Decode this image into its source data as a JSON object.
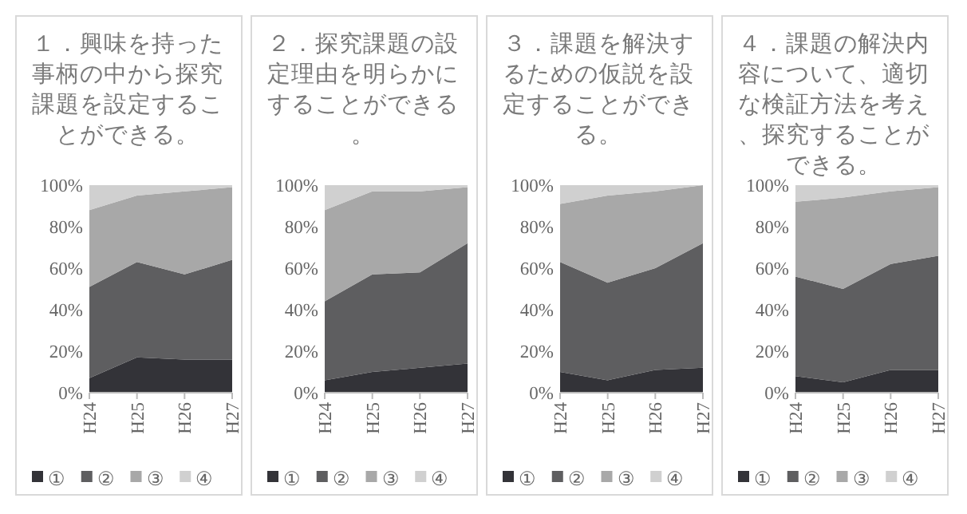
{
  "chart_data": [
    {
      "type": "area",
      "stacked": true,
      "title": "１．興味を持った事柄の中から探究課題を設定することができる。",
      "categories": [
        "H24",
        "H25",
        "H26",
        "H27"
      ],
      "ylim": [
        0,
        100
      ],
      "yticks": [
        {
          "value": 0,
          "label": "0%"
        },
        {
          "value": 20,
          "label": "20%"
        },
        {
          "value": 40,
          "label": "40%"
        },
        {
          "value": 60,
          "label": "60%"
        },
        {
          "value": 80,
          "label": "80%"
        },
        {
          "value": 100,
          "label": "100%"
        }
      ],
      "legend": "bottom",
      "series": [
        {
          "name": "①",
          "color": "#333338",
          "values": [
            7,
            17,
            16,
            16
          ]
        },
        {
          "name": "②",
          "color": "#5e5e60",
          "values": [
            44,
            46,
            41,
            48
          ]
        },
        {
          "name": "③",
          "color": "#a8a8a8",
          "values": [
            37,
            32,
            40,
            35
          ]
        },
        {
          "name": "④",
          "color": "#d0d0d0",
          "values": [
            12,
            5,
            3,
            1
          ]
        }
      ]
    },
    {
      "type": "area",
      "stacked": true,
      "title": "２．探究課題の設定理由を明らかにすることができる。",
      "categories": [
        "H24",
        "H25",
        "H26",
        "H27"
      ],
      "ylim": [
        0,
        100
      ],
      "yticks": [
        {
          "value": 0,
          "label": "0%"
        },
        {
          "value": 20,
          "label": "20%"
        },
        {
          "value": 40,
          "label": "40%"
        },
        {
          "value": 60,
          "label": "60%"
        },
        {
          "value": 80,
          "label": "80%"
        },
        {
          "value": 100,
          "label": "100%"
        }
      ],
      "legend": "bottom",
      "series": [
        {
          "name": "①",
          "color": "#333338",
          "values": [
            6,
            10,
            12,
            14
          ]
        },
        {
          "name": "②",
          "color": "#5e5e60",
          "values": [
            38,
            47,
            46,
            58
          ]
        },
        {
          "name": "③",
          "color": "#a8a8a8",
          "values": [
            44,
            40,
            39,
            27
          ]
        },
        {
          "name": "④",
          "color": "#d0d0d0",
          "values": [
            12,
            3,
            3,
            1
          ]
        }
      ]
    },
    {
      "type": "area",
      "stacked": true,
      "title": "３．課題を解決するための仮説を設定することができる。",
      "categories": [
        "H24",
        "H25",
        "H26",
        "H27"
      ],
      "ylim": [
        0,
        100
      ],
      "yticks": [
        {
          "value": 0,
          "label": "0%"
        },
        {
          "value": 20,
          "label": "20%"
        },
        {
          "value": 40,
          "label": "40%"
        },
        {
          "value": 60,
          "label": "60%"
        },
        {
          "value": 80,
          "label": "80%"
        },
        {
          "value": 100,
          "label": "100%"
        }
      ],
      "legend": "bottom",
      "series": [
        {
          "name": "①",
          "color": "#333338",
          "values": [
            10,
            6,
            11,
            12
          ]
        },
        {
          "name": "②",
          "color": "#5e5e60",
          "values": [
            53,
            47,
            49,
            60
          ]
        },
        {
          "name": "③",
          "color": "#a8a8a8",
          "values": [
            28,
            42,
            37,
            28
          ]
        },
        {
          "name": "④",
          "color": "#d0d0d0",
          "values": [
            9,
            5,
            3,
            0
          ]
        }
      ]
    },
    {
      "type": "area",
      "stacked": true,
      "title": "４．課題の解決内容について、適切な検証方法を考え、探究することができる。",
      "categories": [
        "H24",
        "H25",
        "H26",
        "H27"
      ],
      "ylim": [
        0,
        100
      ],
      "yticks": [
        {
          "value": 0,
          "label": "0%"
        },
        {
          "value": 20,
          "label": "20%"
        },
        {
          "value": 40,
          "label": "40%"
        },
        {
          "value": 60,
          "label": "60%"
        },
        {
          "value": 80,
          "label": "80%"
        },
        {
          "value": 100,
          "label": "100%"
        }
      ],
      "legend": "bottom",
      "series": [
        {
          "name": "①",
          "color": "#333338",
          "values": [
            8,
            5,
            11,
            11
          ]
        },
        {
          "name": "②",
          "color": "#5e5e60",
          "values": [
            48,
            45,
            51,
            55
          ]
        },
        {
          "name": "③",
          "color": "#a8a8a8",
          "values": [
            36,
            44,
            35,
            33
          ]
        },
        {
          "name": "④",
          "color": "#d0d0d0",
          "values": [
            8,
            6,
            3,
            1
          ]
        }
      ]
    }
  ]
}
